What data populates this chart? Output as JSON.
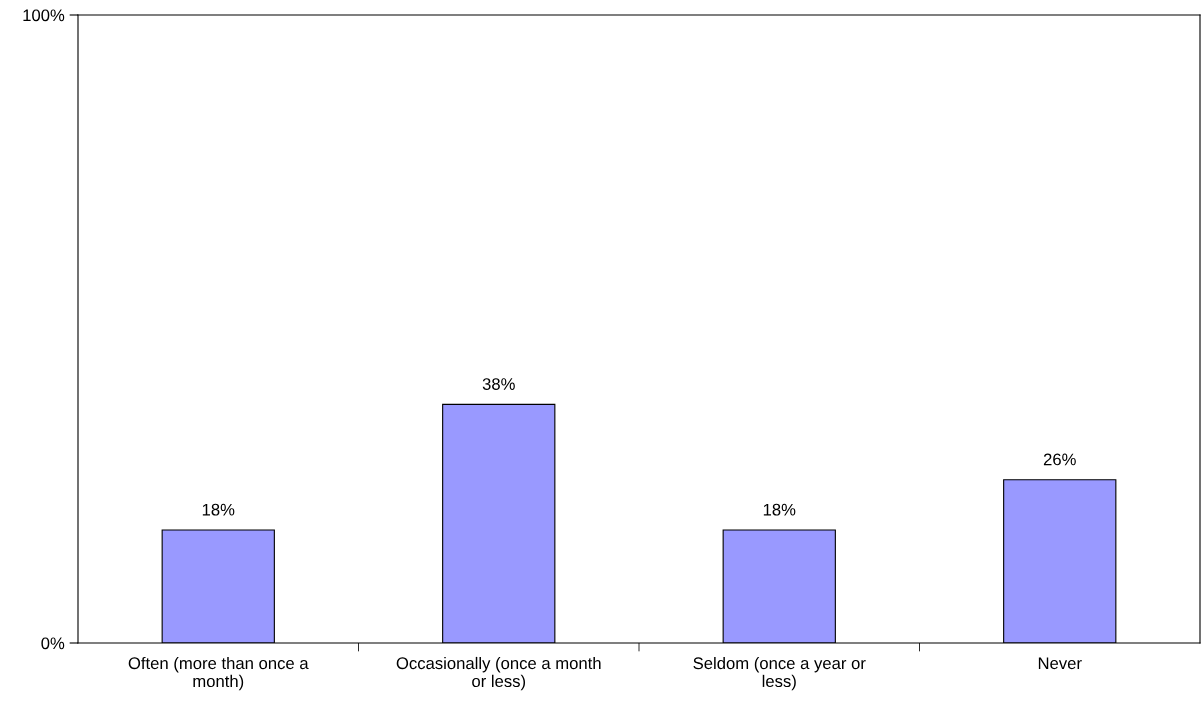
{
  "chart_data": {
    "type": "bar",
    "categories": [
      "Often (more than once a month)",
      "Occasionally (once a month or less)",
      "Seldom (once a year or less)",
      "Never"
    ],
    "values": [
      18,
      38,
      18,
      26
    ],
    "value_labels": [
      "18%",
      "38%",
      "18%",
      "26%"
    ],
    "color": "#9999ff",
    "ylim": [
      0,
      100
    ],
    "yticks": [
      {
        "value": 0,
        "label": "0%"
      },
      {
        "value": 100,
        "label": "100%"
      }
    ],
    "grid": false
  }
}
